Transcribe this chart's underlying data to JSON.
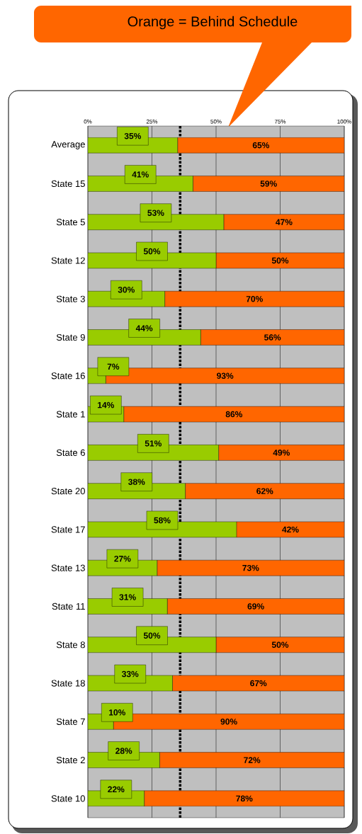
{
  "chart_data": {
    "type": "bar",
    "orientation": "horizontal",
    "stacked": true,
    "title": "Orange = Behind Schedule",
    "categories": [
      "Average",
      "State 15",
      "State 5",
      "State 12",
      "State 3",
      "State 9",
      "State 16",
      "State 1",
      "State 6",
      "State 20",
      "State 17",
      "State 13",
      "State 11",
      "State 8",
      "State 18",
      "State 7",
      "State 2",
      "State 10"
    ],
    "series": [
      {
        "color": "#99cc00",
        "values": [
          35,
          41,
          53,
          50,
          30,
          44,
          7,
          14,
          51,
          38,
          58,
          27,
          31,
          50,
          33,
          10,
          28,
          22
        ],
        "value_labels": [
          "35%",
          "41%",
          "53%",
          "50%",
          "30%",
          "44%",
          "7%",
          "14%",
          "51%",
          "38%",
          "58%",
          "27%",
          "31%",
          "50%",
          "33%",
          "10%",
          "28%",
          "22%"
        ]
      },
      {
        "color": "#ff6600",
        "values": [
          65,
          59,
          47,
          50,
          70,
          56,
          93,
          86,
          49,
          62,
          42,
          73,
          69,
          50,
          67,
          90,
          72,
          78
        ],
        "value_labels": [
          "65%",
          "59%",
          "47%",
          "50%",
          "70%",
          "56%",
          "93%",
          "86%",
          "49%",
          "62%",
          "42%",
          "73%",
          "69%",
          "50%",
          "67%",
          "90%",
          "72%",
          "78%"
        ]
      }
    ],
    "xlim": [
      0,
      100
    ],
    "xticks": [
      {
        "value": 0,
        "label": "0%"
      },
      {
        "value": 25,
        "label": "25%"
      },
      {
        "value": 50,
        "label": "50%"
      },
      {
        "value": 75,
        "label": "75%"
      },
      {
        "value": 100,
        "label": "100%"
      }
    ],
    "grid": "x",
    "ref_lines": [
      {
        "axis": "x",
        "value": 36,
        "line_style": "dotted",
        "color": "#000000"
      }
    ]
  }
}
